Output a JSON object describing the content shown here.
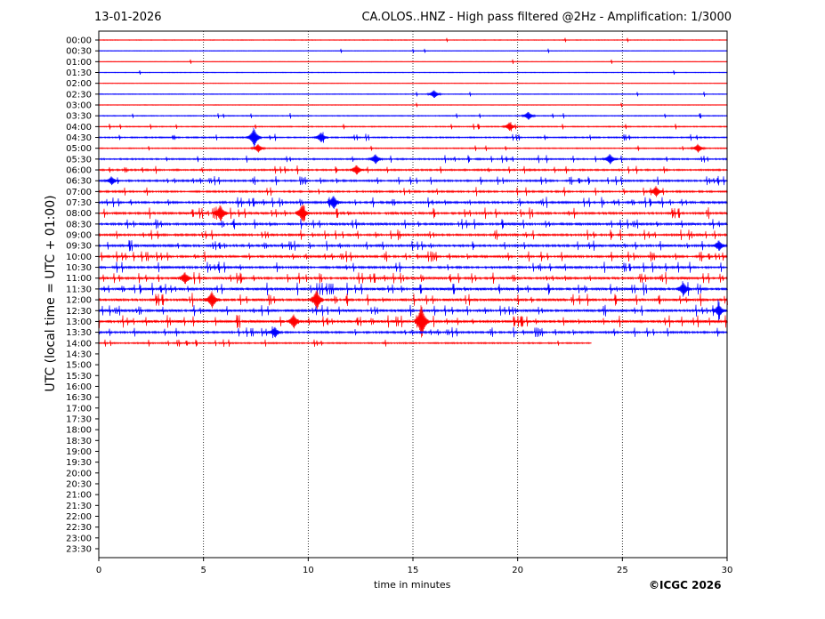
{
  "header": {
    "date": "13-01-2026",
    "title": "CA.OLOS..HNZ - High pass filtered @2Hz - Amplification: 1/3000"
  },
  "footer": {
    "credit": "©ICGC 2026"
  },
  "chart_data": {
    "type": "line",
    "title": "CA.OLOS..HNZ - High pass filtered @2Hz - Amplification: 1/3000",
    "xlabel": "time in minutes",
    "ylabel": "UTC (local time = UTC + 01:00)",
    "xlim": [
      0,
      30
    ],
    "xticks": [
      0,
      5,
      10,
      15,
      20,
      25,
      30
    ],
    "grid": "vertical dotted lines at x ticks",
    "row_labels": [
      "00:00",
      "00:30",
      "01:00",
      "01:30",
      "02:00",
      "02:30",
      "03:00",
      "03:30",
      "04:00",
      "04:30",
      "05:00",
      "05:30",
      "06:00",
      "06:30",
      "07:00",
      "07:30",
      "08:00",
      "08:30",
      "09:00",
      "09:30",
      "10:00",
      "10:30",
      "11:00",
      "11:30",
      "12:00",
      "12:30",
      "13:00",
      "13:30",
      "14:00",
      "14:30",
      "15:00",
      "15:30",
      "16:00",
      "16:30",
      "17:00",
      "17:30",
      "18:00",
      "18:30",
      "19:00",
      "19:30",
      "20:00",
      "20:30",
      "21:00",
      "21:30",
      "22:00",
      "22:30",
      "23:00",
      "23:30"
    ],
    "trace_colors": [
      "#ff0000",
      "#0000ff"
    ],
    "rows_with_data": 29,
    "last_row_end_minute": 23.5,
    "activity": [
      0.05,
      0.05,
      0.05,
      0.05,
      0.05,
      0.1,
      0.05,
      0.15,
      0.2,
      0.3,
      0.2,
      0.4,
      0.45,
      0.5,
      0.5,
      0.65,
      0.7,
      0.7,
      0.65,
      0.7,
      0.7,
      0.7,
      0.75,
      0.85,
      0.9,
      0.8,
      0.9,
      0.6,
      0.35
    ],
    "events": [
      {
        "row": "02:30",
        "minute": 16.0,
        "amp": 0.5
      },
      {
        "row": "03:30",
        "minute": 20.5,
        "amp": 0.5
      },
      {
        "row": "04:00",
        "minute": 19.6,
        "amp": 0.5
      },
      {
        "row": "04:30",
        "minute": 7.4,
        "amp": 1.2
      },
      {
        "row": "04:30",
        "minute": 10.6,
        "amp": 0.6
      },
      {
        "row": "05:00",
        "minute": 7.6,
        "amp": 0.5
      },
      {
        "row": "05:00",
        "minute": 28.6,
        "amp": 0.5
      },
      {
        "row": "05:30",
        "minute": 13.2,
        "amp": 0.6
      },
      {
        "row": "05:30",
        "minute": 24.4,
        "amp": 0.6
      },
      {
        "row": "06:00",
        "minute": 12.3,
        "amp": 0.6
      },
      {
        "row": "06:30",
        "minute": 0.6,
        "amp": 0.5
      },
      {
        "row": "07:00",
        "minute": 26.6,
        "amp": 0.6
      },
      {
        "row": "07:30",
        "minute": 11.2,
        "amp": 0.8
      },
      {
        "row": "08:00",
        "minute": 5.8,
        "amp": 1.0
      },
      {
        "row": "08:00",
        "minute": 9.7,
        "amp": 1.0
      },
      {
        "row": "09:30",
        "minute": 29.6,
        "amp": 0.6
      },
      {
        "row": "11:00",
        "minute": 4.1,
        "amp": 0.7
      },
      {
        "row": "11:30",
        "minute": 27.9,
        "amp": 0.8
      },
      {
        "row": "12:00",
        "minute": 5.4,
        "amp": 1.0
      },
      {
        "row": "12:00",
        "minute": 10.4,
        "amp": 1.2
      },
      {
        "row": "12:30",
        "minute": 29.6,
        "amp": 0.8
      },
      {
        "row": "13:00",
        "minute": 9.3,
        "amp": 0.8
      },
      {
        "row": "13:00",
        "minute": 15.4,
        "amp": 2.2
      },
      {
        "row": "13:30",
        "minute": 8.4,
        "amp": 0.6
      }
    ]
  }
}
